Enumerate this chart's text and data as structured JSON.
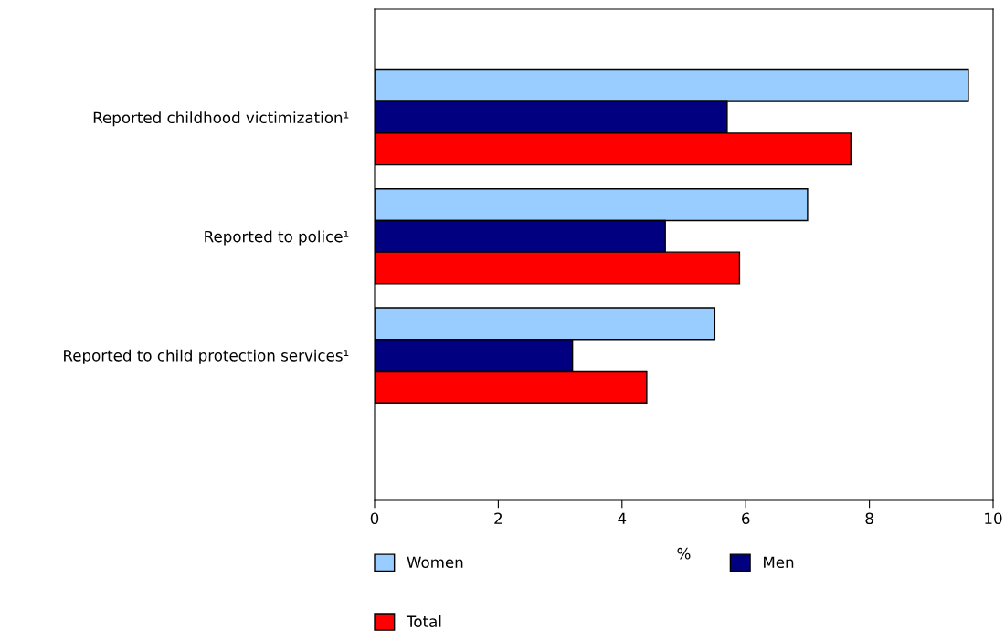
{
  "chart_data": {
    "type": "bar",
    "orientation": "horizontal",
    "categories": [
      "Reported childhood victimization¹",
      "Reported to police¹",
      "Reported to child protection services¹"
    ],
    "series": [
      {
        "name": "Women",
        "color": "#99ccff",
        "values": [
          9.6,
          7.0,
          5.5
        ]
      },
      {
        "name": "Men",
        "color": "#000080",
        "values": [
          5.7,
          4.7,
          3.2
        ]
      },
      {
        "name": "Total",
        "color": "#ff0000",
        "values": [
          7.7,
          5.9,
          4.4
        ]
      }
    ],
    "xlabel": "%",
    "xlim": [
      0,
      10
    ],
    "xticks": [
      0,
      2,
      4,
      6,
      8,
      10
    ],
    "grid": false,
    "legend": "bottom"
  }
}
